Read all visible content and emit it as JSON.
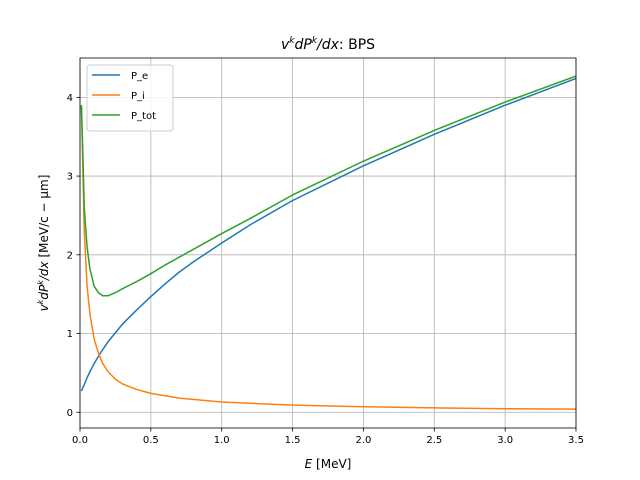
{
  "chart_data": {
    "type": "line",
    "title": {
      "italic": "v",
      "sup1": "k",
      "mid": "dP",
      "sup2": "k",
      "tail": "/dx",
      "suffix": ": BPS"
    },
    "xlabel": {
      "italic": "E",
      "rest": " [MeV]"
    },
    "ylabel": {
      "italic": "v",
      "sup1": "k",
      "mid": "dP",
      "sup2": "k",
      "tail": "/dx",
      "rest": " [MeV/c − μm]"
    },
    "xlim": [
      0,
      3.5
    ],
    "ylim": [
      -0.2,
      4.5
    ],
    "xticks": [
      "0.0",
      "0.5",
      "1.0",
      "1.5",
      "2.0",
      "2.5",
      "3.0",
      "3.5"
    ],
    "xtick_values": [
      0,
      0.5,
      1.0,
      1.5,
      2.0,
      2.5,
      3.0,
      3.5
    ],
    "yticks": [
      "0",
      "1",
      "2",
      "3",
      "4"
    ],
    "ytick_values": [
      0,
      1,
      2,
      3,
      4
    ],
    "grid": true,
    "legend_position": "upper-left",
    "series": [
      {
        "name": "P_e",
        "color": "#1f77b4",
        "x": [
          0.01,
          0.03,
          0.05,
          0.08,
          0.1,
          0.15,
          0.2,
          0.25,
          0.3,
          0.4,
          0.5,
          0.6,
          0.7,
          0.8,
          1.0,
          1.2,
          1.5,
          2.0,
          2.5,
          3.0,
          3.5
        ],
        "y": [
          0.27,
          0.35,
          0.44,
          0.55,
          0.62,
          0.77,
          0.9,
          1.01,
          1.12,
          1.3,
          1.47,
          1.63,
          1.78,
          1.91,
          2.15,
          2.38,
          2.69,
          3.13,
          3.53,
          3.9,
          4.24
        ]
      },
      {
        "name": "P_i",
        "color": "#ff7f0e",
        "x": [
          0.01,
          0.02,
          0.03,
          0.05,
          0.07,
          0.1,
          0.13,
          0.16,
          0.2,
          0.25,
          0.3,
          0.4,
          0.5,
          0.7,
          1.0,
          1.5,
          2.0,
          2.5,
          3.0,
          3.5
        ],
        "y": [
          3.9,
          3.1,
          2.3,
          1.6,
          1.25,
          0.93,
          0.75,
          0.62,
          0.51,
          0.42,
          0.36,
          0.29,
          0.24,
          0.18,
          0.13,
          0.09,
          0.07,
          0.055,
          0.045,
          0.04
        ]
      },
      {
        "name": "P_tot",
        "color": "#2ca02c",
        "x": [
          0.01,
          0.02,
          0.03,
          0.05,
          0.07,
          0.1,
          0.13,
          0.16,
          0.2,
          0.25,
          0.3,
          0.4,
          0.5,
          0.6,
          0.7,
          0.8,
          1.0,
          1.2,
          1.5,
          2.0,
          2.5,
          3.0,
          3.5
        ],
        "y": [
          3.9,
          3.3,
          2.6,
          2.1,
          1.82,
          1.6,
          1.52,
          1.48,
          1.48,
          1.52,
          1.57,
          1.66,
          1.76,
          1.87,
          1.97,
          2.07,
          2.27,
          2.46,
          2.76,
          3.19,
          3.58,
          3.94,
          4.27
        ]
      }
    ]
  }
}
